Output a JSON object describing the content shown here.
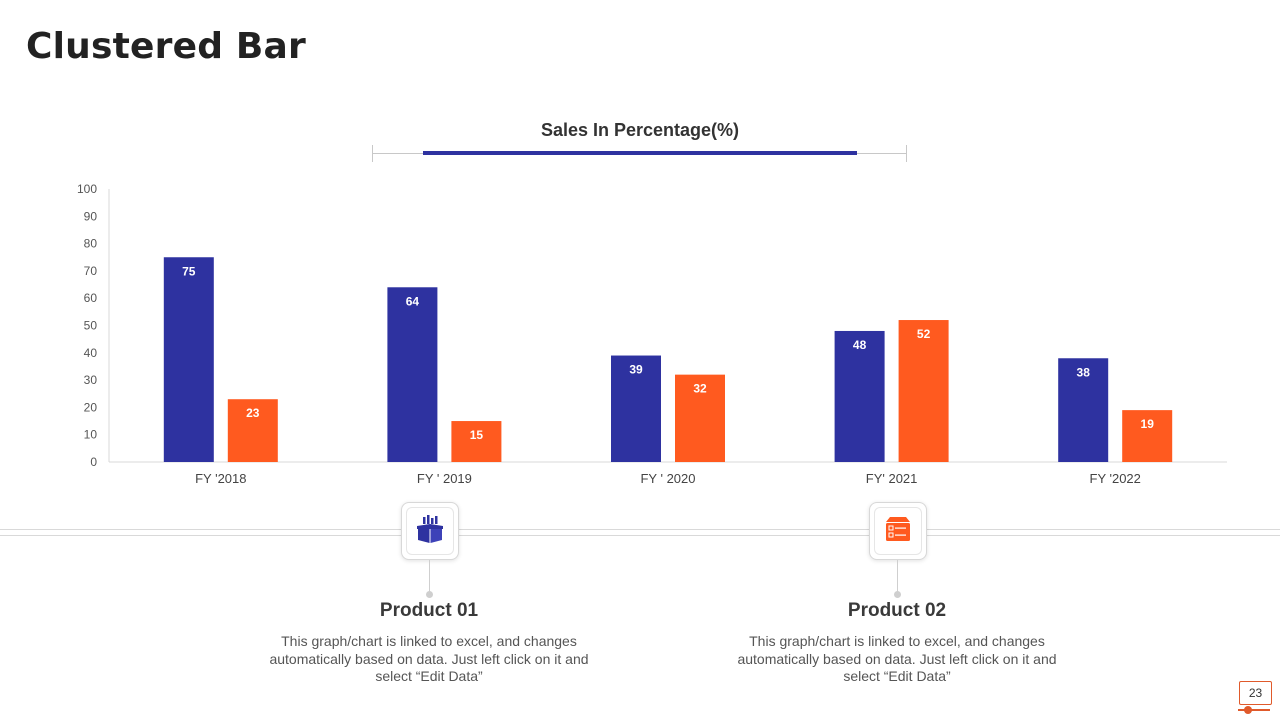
{
  "page": {
    "title": "Clustered Bar",
    "page_number": "23"
  },
  "colors": {
    "product_01": "#2e32a0",
    "product_02": "#ff5a1f",
    "accent_line": "#2e32a0"
  },
  "chart_data": {
    "type": "bar",
    "title": "Sales In Percentage(%)",
    "xlabel": "",
    "ylabel": "",
    "ylim": [
      0,
      100
    ],
    "yticks": [
      0,
      10,
      20,
      30,
      40,
      50,
      60,
      70,
      80,
      90,
      100
    ],
    "categories": [
      "FY '2018",
      "FY ' 2019",
      "FY ' 2020",
      "FY' 2021",
      "FY '2022"
    ],
    "series": [
      {
        "values": [
          75,
          64,
          39,
          48,
          38
        ],
        "color": "#2e32a0"
      },
      {
        "values": [
          23,
          15,
          32,
          52,
          19
        ],
        "color": "#ff5a1f"
      }
    ],
    "data_labels": true,
    "grid": false,
    "legend": "none"
  },
  "products": [
    {
      "title": "Product 01",
      "description": "This graph/chart is linked to excel, and changes automatically based on data. Just left click on it and select “Edit Data”",
      "icon": "box-chart-icon"
    },
    {
      "title": "Product 02",
      "description": "This graph/chart is linked to excel, and changes automatically based on data. Just left click on it and select “Edit Data”",
      "icon": "box-list-icon"
    }
  ]
}
